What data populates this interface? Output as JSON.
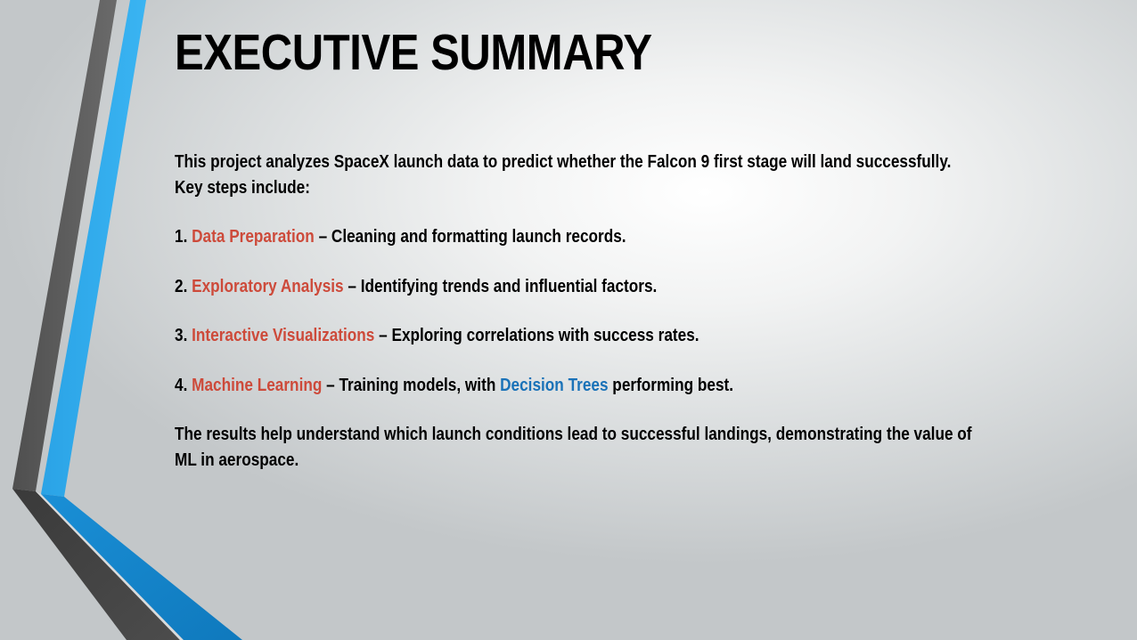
{
  "slide": {
    "title": "EXECUTIVE SUMMARY",
    "intro_line1": "This project analyzes SpaceX launch data to predict whether the Falcon 9 first stage will land successfully.",
    "intro_line2": "Key steps include:",
    "steps": [
      {
        "num": "1.",
        "name": "Data Preparation",
        "desc": " – Cleaning and formatting launch records."
      },
      {
        "num": "2.",
        "name": "Exploratory Analysis",
        "desc": " – Identifying trends and influential factors."
      },
      {
        "num": "3.",
        "name": "Interactive Visualizations",
        "desc": " – Exploring correlations with success rates."
      },
      {
        "num": "4.",
        "name": "Machine Learning",
        "desc": " – Training models, with ",
        "highlight": "Decision Trees",
        "desc_after": " performing best."
      }
    ],
    "conclusion_line1": "The results help understand which launch conditions lead to successful landings, demonstrating the value of",
    "conclusion_line2": "ML in aerospace."
  },
  "colors": {
    "accent": "#cd4a3a",
    "highlight": "#1a72b8",
    "decor_blue": "#2ea9ea",
    "decor_blue_dark": "#1280c4",
    "decor_gray": "#5e5e5e",
    "decor_dark": "#404040"
  }
}
